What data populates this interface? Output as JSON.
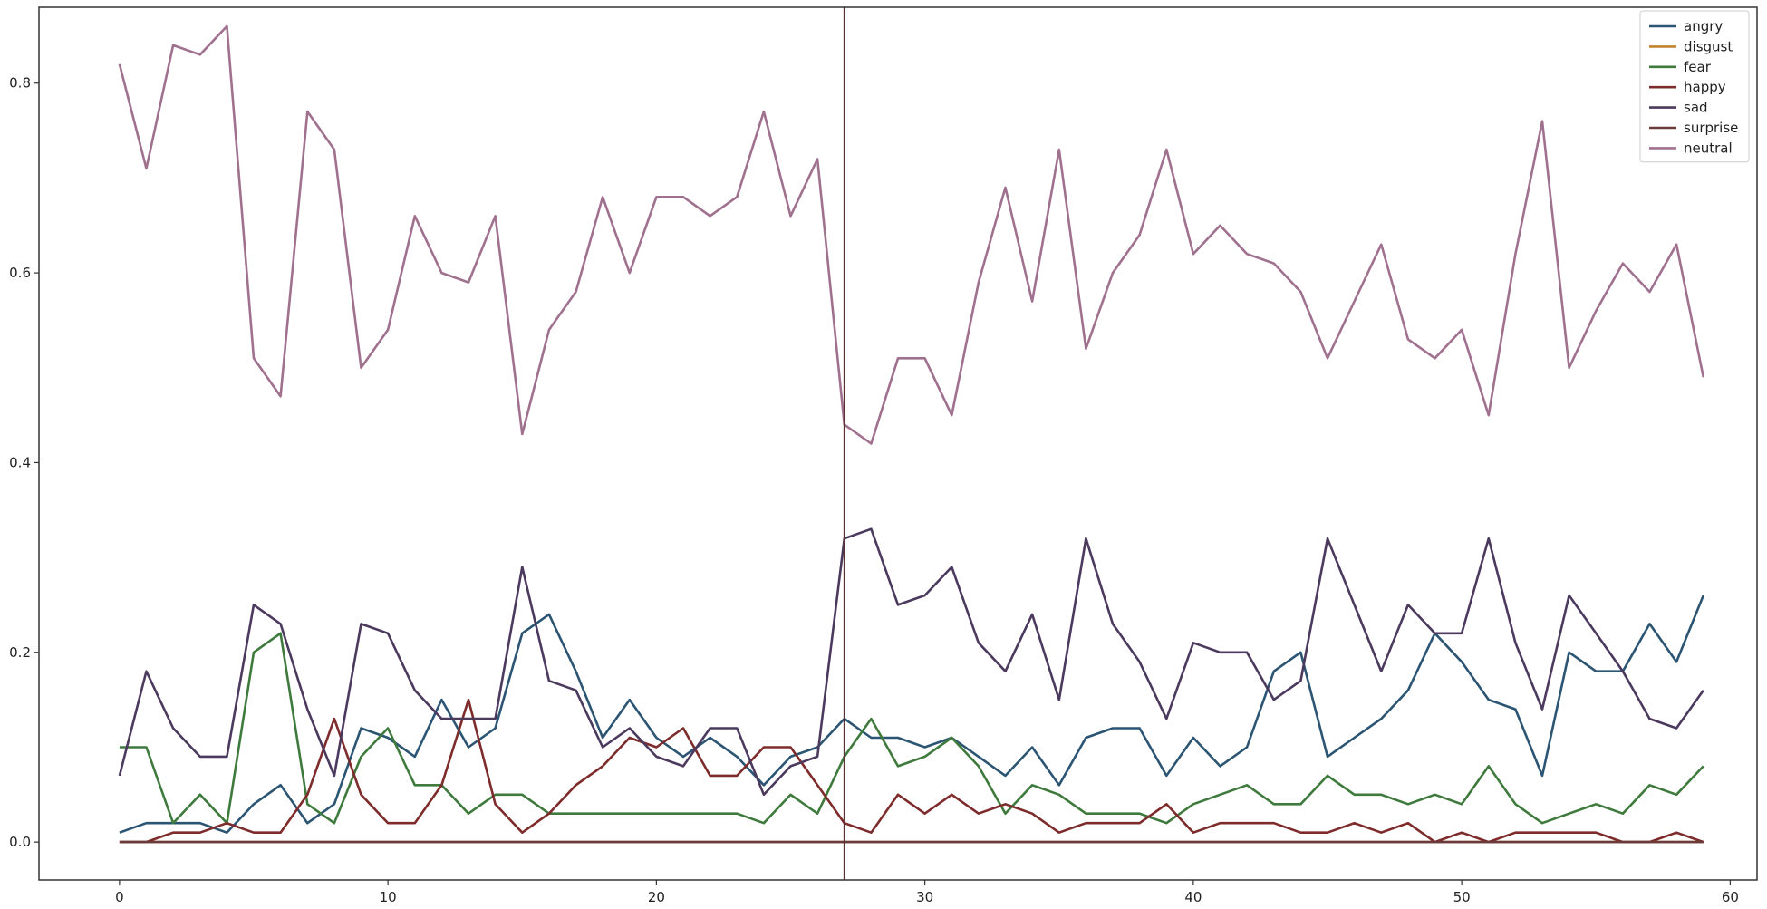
{
  "chart_data": {
    "type": "line",
    "title": "",
    "xlabel": "",
    "ylabel": "",
    "xlim": [
      -3,
      61
    ],
    "ylim": [
      -0.04,
      0.88
    ],
    "xticks": [
      0,
      10,
      20,
      30,
      40,
      50,
      60
    ],
    "yticks": [
      0.0,
      0.2,
      0.4,
      0.6,
      0.8
    ],
    "xtick_labels": [
      "0",
      "10",
      "20",
      "30",
      "40",
      "50",
      "60"
    ],
    "ytick_labels": [
      "0.0",
      "0.2",
      "0.4",
      "0.6",
      "0.8"
    ],
    "grid": false,
    "legend_position": "top-right",
    "vertical_line_x": 27,
    "x": [
      0,
      1,
      2,
      3,
      4,
      5,
      6,
      7,
      8,
      9,
      10,
      11,
      12,
      13,
      14,
      15,
      16,
      17,
      18,
      19,
      20,
      21,
      22,
      23,
      24,
      25,
      26,
      27,
      28,
      29,
      30,
      31,
      32,
      33,
      34,
      35,
      36,
      37,
      38,
      39,
      40,
      41,
      42,
      43,
      44,
      45,
      46,
      47,
      48,
      49,
      50,
      51,
      52,
      53,
      54,
      55,
      56,
      57,
      58,
      59
    ],
    "series": [
      {
        "name": "angry",
        "color": "#2b5573",
        "values": [
          0.01,
          0.02,
          0.02,
          0.02,
          0.01,
          0.04,
          0.06,
          0.02,
          0.04,
          0.12,
          0.11,
          0.09,
          0.15,
          0.1,
          0.12,
          0.22,
          0.24,
          0.18,
          0.11,
          0.15,
          0.11,
          0.09,
          0.11,
          0.09,
          0.06,
          0.09,
          0.1,
          0.13,
          0.11,
          0.11,
          0.1,
          0.11,
          0.09,
          0.07,
          0.1,
          0.06,
          0.11,
          0.12,
          0.12,
          0.07,
          0.11,
          0.08,
          0.1,
          0.18,
          0.2,
          0.09,
          0.11,
          0.13,
          0.16,
          0.22,
          0.19,
          0.15,
          0.14,
          0.07,
          0.2,
          0.18,
          0.18,
          0.23,
          0.19,
          0.26
        ]
      },
      {
        "name": "disgust",
        "color": "#c2822f",
        "values": [
          0,
          0,
          0,
          0,
          0,
          0,
          0,
          0,
          0,
          0,
          0,
          0,
          0,
          0,
          0,
          0,
          0,
          0,
          0,
          0,
          0,
          0,
          0,
          0,
          0,
          0,
          0,
          0,
          0,
          0,
          0,
          0,
          0,
          0,
          0,
          0,
          0,
          0,
          0,
          0,
          0,
          0,
          0,
          0,
          0,
          0,
          0,
          0,
          0,
          0,
          0,
          0,
          0,
          0,
          0,
          0,
          0,
          0,
          0,
          0
        ]
      },
      {
        "name": "fear",
        "color": "#3f7a3d",
        "values": [
          0.1,
          0.1,
          0.02,
          0.05,
          0.02,
          0.2,
          0.22,
          0.04,
          0.02,
          0.09,
          0.12,
          0.06,
          0.06,
          0.03,
          0.05,
          0.05,
          0.03,
          0.03,
          0.03,
          0.03,
          0.03,
          0.03,
          0.03,
          0.03,
          0.02,
          0.05,
          0.03,
          0.09,
          0.13,
          0.08,
          0.09,
          0.11,
          0.08,
          0.03,
          0.06,
          0.05,
          0.03,
          0.03,
          0.03,
          0.02,
          0.04,
          0.05,
          0.06,
          0.04,
          0.04,
          0.07,
          0.05,
          0.05,
          0.04,
          0.05,
          0.04,
          0.08,
          0.04,
          0.02,
          0.03,
          0.04,
          0.03,
          0.06,
          0.05,
          0.08
        ]
      },
      {
        "name": "happy",
        "color": "#7e2b2b",
        "values": [
          0,
          0,
          0.01,
          0.01,
          0.02,
          0.01,
          0.01,
          0.05,
          0.13,
          0.05,
          0.02,
          0.02,
          0.06,
          0.15,
          0.04,
          0.01,
          0.03,
          0.06,
          0.08,
          0.11,
          0.1,
          0.12,
          0.07,
          0.07,
          0.1,
          0.1,
          0.06,
          0.02,
          0.01,
          0.05,
          0.03,
          0.05,
          0.03,
          0.04,
          0.03,
          0.01,
          0.02,
          0.02,
          0.02,
          0.04,
          0.01,
          0.02,
          0.02,
          0.02,
          0.01,
          0.01,
          0.02,
          0.01,
          0.02,
          0.0,
          0.01,
          0.0,
          0.01,
          0.01,
          0.01,
          0.01,
          0.0,
          0.0,
          0.01,
          0.0
        ]
      },
      {
        "name": "sad",
        "color": "#4b3a5e",
        "values": [
          0.07,
          0.18,
          0.12,
          0.09,
          0.09,
          0.25,
          0.23,
          0.14,
          0.07,
          0.23,
          0.22,
          0.16,
          0.13,
          0.13,
          0.13,
          0.29,
          0.17,
          0.16,
          0.1,
          0.12,
          0.09,
          0.08,
          0.12,
          0.12,
          0.05,
          0.08,
          0.09,
          0.32,
          0.33,
          0.25,
          0.26,
          0.29,
          0.21,
          0.18,
          0.24,
          0.15,
          0.32,
          0.23,
          0.19,
          0.13,
          0.21,
          0.2,
          0.2,
          0.15,
          0.17,
          0.32,
          0.25,
          0.18,
          0.25,
          0.22,
          0.22,
          0.32,
          0.21,
          0.14,
          0.26,
          0.22,
          0.18,
          0.13,
          0.12,
          0.16
        ]
      },
      {
        "name": "surprise",
        "color": "#6b3a3a",
        "values": [
          0,
          0,
          0,
          0,
          0,
          0,
          0,
          0,
          0,
          0,
          0,
          0,
          0,
          0,
          0,
          0,
          0,
          0,
          0,
          0,
          0,
          0,
          0,
          0,
          0,
          0,
          0,
          0,
          0,
          0,
          0,
          0,
          0,
          0,
          0,
          0,
          0,
          0,
          0,
          0,
          0,
          0,
          0,
          0,
          0,
          0,
          0,
          0,
          0,
          0,
          0,
          0,
          0,
          0,
          0,
          0,
          0,
          0,
          0,
          0
        ]
      },
      {
        "name": "neutral",
        "color": "#a0708f",
        "values": [
          0.82,
          0.71,
          0.84,
          0.83,
          0.86,
          0.51,
          0.47,
          0.77,
          0.73,
          0.5,
          0.54,
          0.66,
          0.6,
          0.59,
          0.66,
          0.43,
          0.54,
          0.58,
          0.68,
          0.6,
          0.68,
          0.68,
          0.66,
          0.68,
          0.77,
          0.66,
          0.72,
          0.44,
          0.42,
          0.51,
          0.51,
          0.45,
          0.59,
          0.69,
          0.57,
          0.73,
          0.52,
          0.6,
          0.64,
          0.73,
          0.62,
          0.65,
          0.62,
          0.61,
          0.58,
          0.51,
          0.57,
          0.63,
          0.53,
          0.51,
          0.54,
          0.45,
          0.62,
          0.76,
          0.5,
          0.56,
          0.61,
          0.58,
          0.63,
          0.49
        ]
      }
    ]
  }
}
